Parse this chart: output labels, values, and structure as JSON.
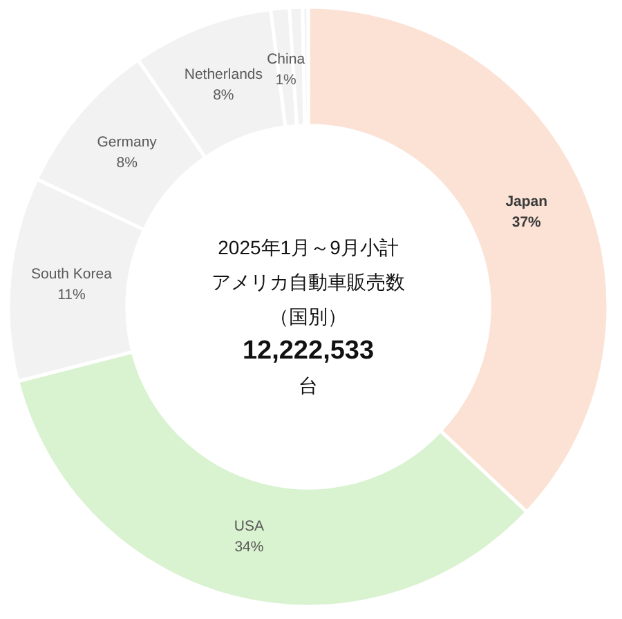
{
  "chart_data": {
    "type": "donut",
    "title": "2025年1月～9月小計",
    "subtitle": "アメリカ自動車販売数（国別）",
    "annotations": [
      "12,222,533",
      "台"
    ],
    "categories": [
      "Japan",
      "USA",
      "South Korea",
      "Germany",
      "Netherlands",
      "China",
      null,
      null
    ],
    "values": [
      37,
      34,
      11,
      8.4,
      7.6,
      1,
      0.7,
      0.3
    ],
    "colors": [
      "#fbe2d5",
      "#d9f2d0",
      "#f2f2f2",
      "#f2f2f2",
      "#f2f2f2",
      "#f2f2f2",
      "#f2f2f2",
      "#f2f2f2"
    ],
    "value_labels": [
      "37%",
      "34%",
      "11%",
      "8%",
      "8%",
      "1%",
      null,
      null
    ]
  }
}
